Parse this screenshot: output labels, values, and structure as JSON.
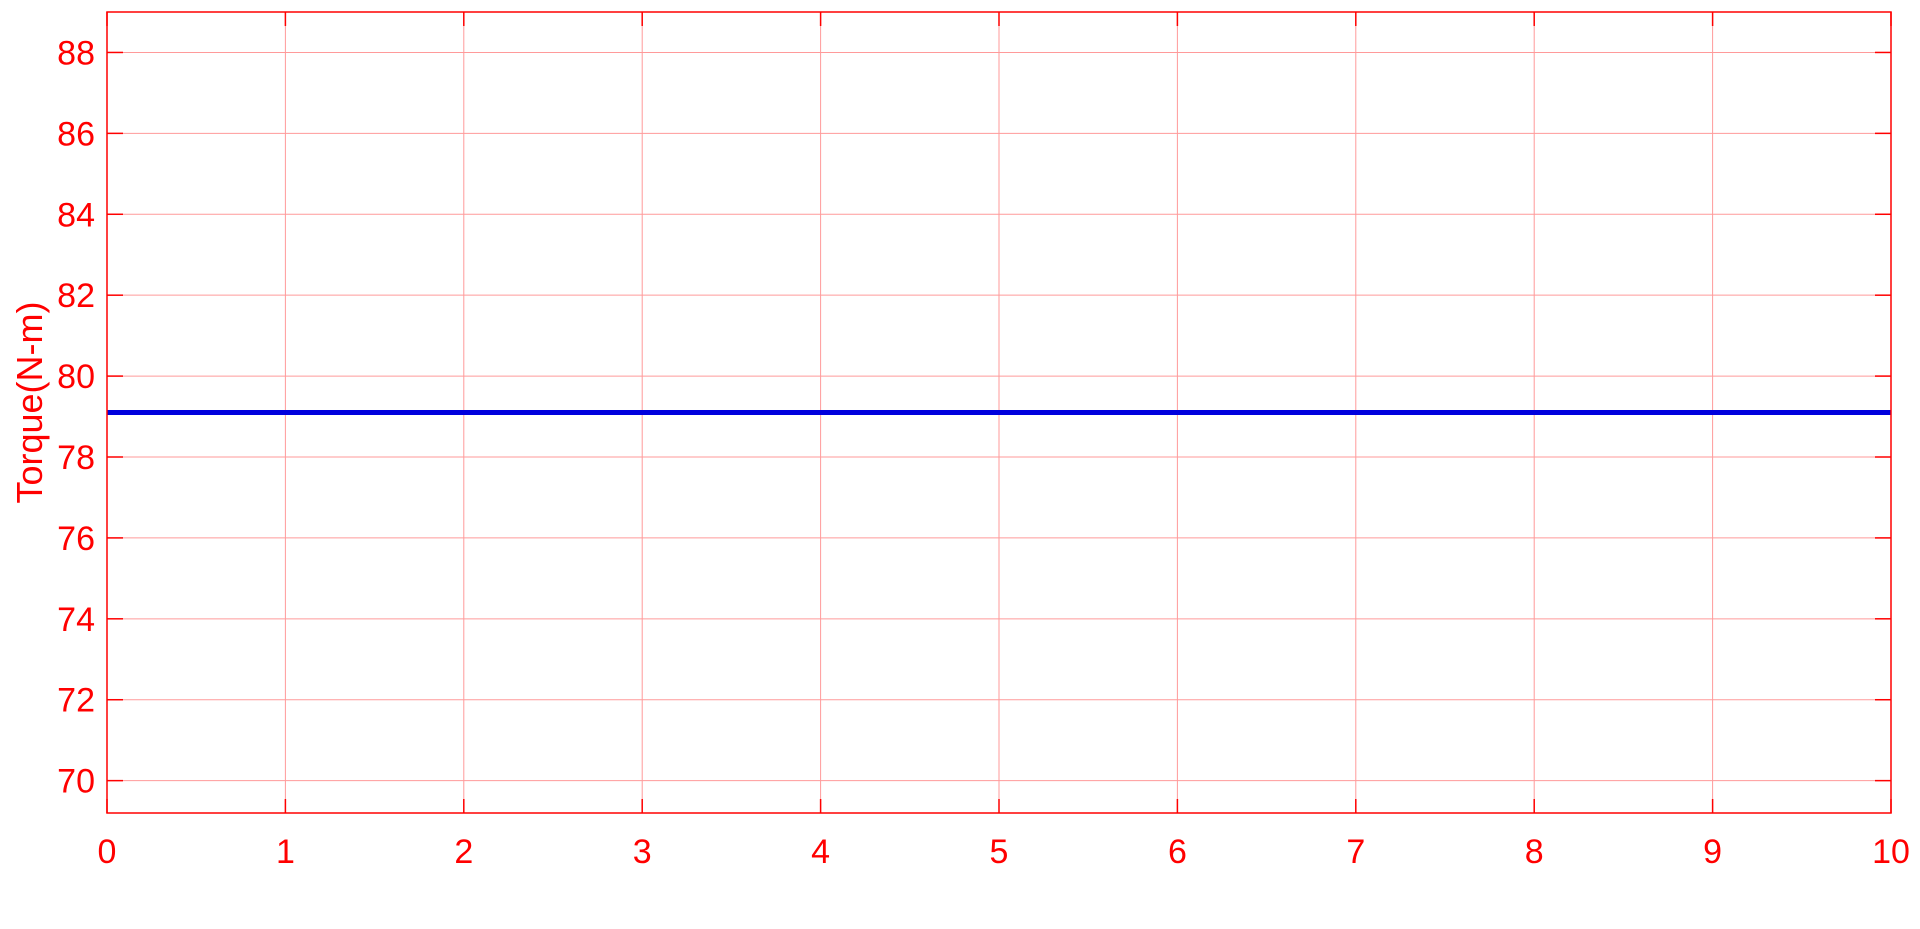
{
  "chart_data": {
    "type": "line",
    "title": "",
    "xlabel": "",
    "ylabel": "Torque(N-m)",
    "xlim": [
      0,
      10
    ],
    "ylim": [
      69.2,
      89.0
    ],
    "x_ticks": [
      0,
      1,
      2,
      3,
      4,
      5,
      6,
      7,
      8,
      9,
      10
    ],
    "y_ticks": [
      70,
      72,
      74,
      76,
      78,
      80,
      82,
      84,
      86,
      88
    ],
    "grid": true,
    "series": [
      {
        "color": "#0000dd",
        "x": [
          0,
          10
        ],
        "y": [
          79.1,
          79.1
        ]
      }
    ]
  },
  "colors": {
    "axes": "#ff0000",
    "grid": "#ff9a9a",
    "background": "#ffffff"
  }
}
